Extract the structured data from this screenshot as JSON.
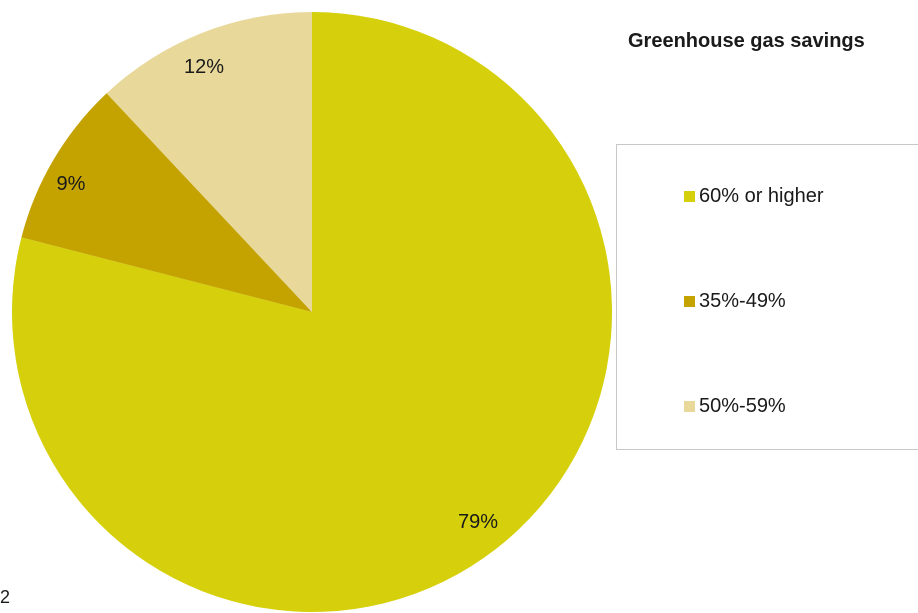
{
  "chart_data": {
    "type": "pie",
    "title": "",
    "legend_title": "Greenhouse gas savings",
    "legend_position": "right",
    "slices": [
      {
        "name": "60% or higher",
        "value": 79,
        "label": "79%",
        "color": "#d5d00b"
      },
      {
        "name": "35%-49%",
        "value": 9,
        "label": "9%",
        "color": "#c4a300"
      },
      {
        "name": "50%-59%",
        "value": 12,
        "label": "12%",
        "color": "#e8d89a"
      }
    ]
  },
  "page_number": "2"
}
